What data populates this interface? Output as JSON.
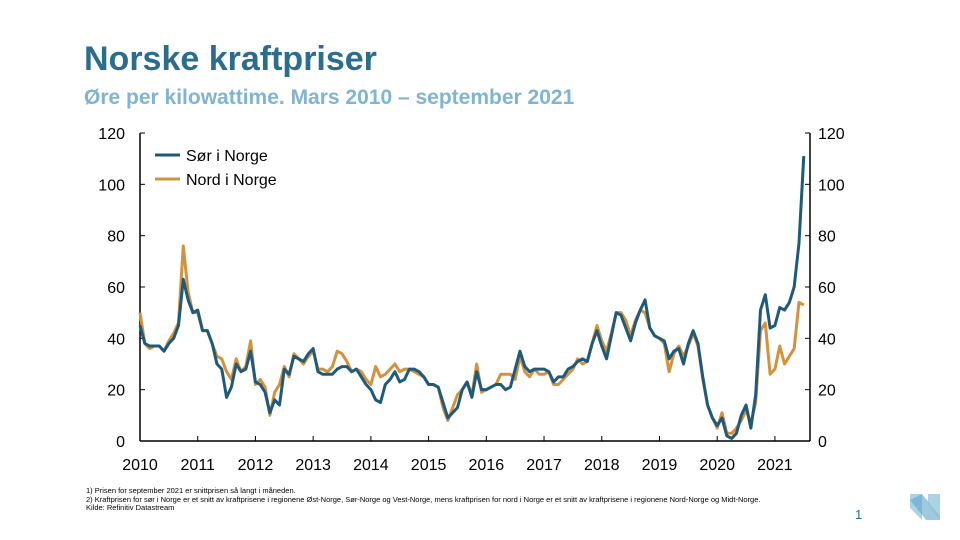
{
  "header": {
    "title": "Norske kraftpriser",
    "subtitle": "Øre per kilowattime. Mars 2010 – september 2021"
  },
  "footnotes": [
    "1) Prisen for september 2021 er snittprisen så langt i måneden.",
    "2) Kraftprisen for sør i Norge er et snitt av kraftprisene i regionene Øst-Norge, Sør-Norge og Vest-Norge, mens kraftprisen for nord i Norge er et snitt av kraftprisene i regionene Nord-Norge og Midt-Norge.",
    "Kilde: Refinitiv Datastream"
  ],
  "page_number": "1",
  "chart_data": {
    "type": "line",
    "x_start": "2010-03",
    "x_end": "2021-09",
    "frequency": "monthly",
    "x_tick_labels": [
      "2010",
      "2011",
      "2012",
      "2013",
      "2014",
      "2015",
      "2016",
      "2017",
      "2018",
      "2019",
      "2020",
      "2021"
    ],
    "y_ticks": [
      0,
      20,
      40,
      60,
      80,
      100,
      120
    ],
    "ylim": [
      0,
      120
    ],
    "y_axis_both_sides": true,
    "grid": false,
    "legend_position": "top-left",
    "series": [
      {
        "name": "Sør i Norge",
        "color": "#1f5a7a",
        "values": [
          45,
          38,
          37,
          37,
          37,
          35,
          38,
          40,
          45,
          63,
          55,
          50,
          51,
          43,
          43,
          38,
          30,
          28,
          17,
          21,
          30,
          27,
          28,
          35,
          23,
          22,
          19,
          11,
          16,
          14,
          28,
          26,
          33,
          32,
          31,
          34,
          36,
          27,
          26,
          26,
          26,
          28,
          29,
          29,
          27,
          28,
          25,
          22,
          20,
          16,
          15,
          22,
          24,
          27,
          23,
          24,
          28,
          28,
          27,
          25,
          22,
          22,
          21,
          15,
          9,
          11,
          13,
          20,
          23,
          17,
          27,
          20,
          20,
          21,
          22,
          22,
          20,
          21,
          28,
          35,
          29,
          27,
          28,
          28,
          28,
          27,
          23,
          25,
          25,
          28,
          29,
          31,
          32,
          31,
          38,
          43,
          37,
          32,
          41,
          50,
          49,
          44,
          39,
          46,
          51,
          55,
          44,
          41,
          40,
          39,
          32,
          35,
          36,
          30,
          38,
          43,
          38,
          25,
          14,
          9,
          6,
          9,
          2,
          1,
          3,
          10,
          14,
          5,
          18,
          51,
          57,
          44,
          45,
          52,
          51,
          54,
          60,
          77,
          111
        ]
      },
      {
        "name": "Nord i Norge",
        "color": "#d4913e",
        "values": [
          50,
          38,
          36,
          37,
          37,
          35,
          39,
          42,
          46,
          76,
          58,
          50,
          50,
          43,
          43,
          38,
          33,
          32,
          27,
          24,
          32,
          27,
          29,
          39,
          22,
          24,
          21,
          10,
          19,
          22,
          29,
          25,
          34,
          32,
          30,
          33,
          35,
          28,
          28,
          27,
          29,
          35,
          34,
          31,
          27,
          28,
          27,
          24,
          22,
          29,
          25,
          26,
          28,
          30,
          27,
          28,
          28,
          27,
          26,
          25,
          22,
          22,
          21,
          13,
          8,
          13,
          18,
          20,
          23,
          18,
          30,
          19,
          20,
          21,
          22,
          26,
          26,
          26,
          24,
          33,
          27,
          25,
          28,
          26,
          26,
          27,
          22,
          22,
          24,
          26,
          28,
          32,
          30,
          31,
          38,
          45,
          39,
          35,
          42,
          50,
          50,
          47,
          41,
          47,
          51,
          50,
          44,
          41,
          40,
          38,
          27,
          34,
          37,
          33,
          37,
          42,
          37,
          24,
          14,
          9,
          5,
          11,
          3,
          3,
          5,
          8,
          12,
          7,
          15,
          43,
          46,
          26,
          28,
          37,
          30,
          33,
          36,
          54,
          53
        ]
      }
    ]
  },
  "logo": {
    "icon": "norges-bank-n-logo",
    "color": "#8fc3dc"
  }
}
